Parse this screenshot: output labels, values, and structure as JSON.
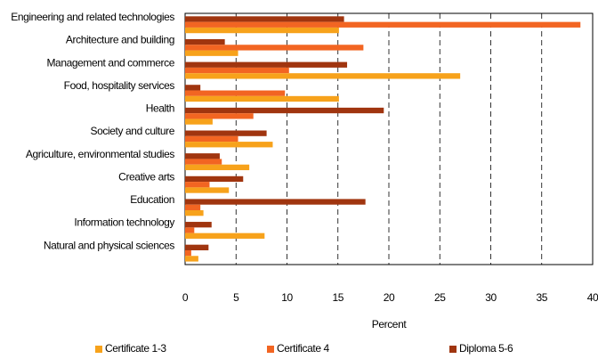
{
  "chart_data": {
    "type": "bar",
    "orientation": "horizontal",
    "categories": [
      "Engineering and related technologies",
      "Architecture and building",
      "Management and commerce",
      "Food, hospitality services",
      "Health",
      "Society and culture",
      "Agriculture, environmental studies",
      "Creative arts",
      "Education",
      "Information technology",
      "Natural and physical sciences"
    ],
    "series": [
      {
        "name": "Certificate 1-3",
        "color": "#f7a21b",
        "values": [
          15.1,
          5.2,
          27,
          15.1,
          2.7,
          8.6,
          6.3,
          4.3,
          1.8,
          7.8,
          1.3
        ]
      },
      {
        "name": "Certificate 4",
        "color": "#f26522",
        "values": [
          38.8,
          17.5,
          10.2,
          9.8,
          6.7,
          5.2,
          3.6,
          2.4,
          1.5,
          0.9,
          0.6
        ]
      },
      {
        "name": "Diploma 5-6",
        "color": "#a0350f",
        "values": [
          15.6,
          3.9,
          15.9,
          1.5,
          19.5,
          8.0,
          3.4,
          5.7,
          17.7,
          2.6,
          2.3
        ]
      }
    ],
    "xlabel": "Percent",
    "xlim": [
      0,
      40
    ],
    "xticks": [
      0,
      5,
      10,
      15,
      20,
      25,
      30,
      35,
      40
    ],
    "grid": true,
    "legend": "bottom"
  }
}
